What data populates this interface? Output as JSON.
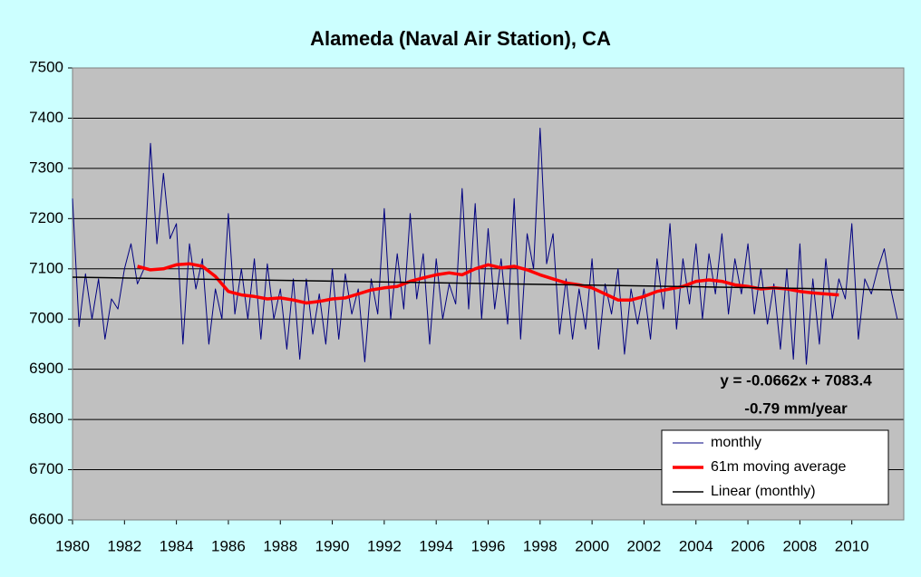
{
  "chart_data": {
    "type": "line",
    "title": "Alameda (Naval Air Station), CA",
    "annotations": [
      "y = -0.0662x + 7083.4",
      "-0.79 mm/year"
    ],
    "xlim": [
      1980,
      2012
    ],
    "xticks": [
      1980,
      1982,
      1984,
      1986,
      1988,
      1990,
      1992,
      1994,
      1996,
      1998,
      2000,
      2002,
      2004,
      2006,
      2008,
      2010
    ],
    "ylim": [
      6600,
      7500
    ],
    "yticks": [
      6600,
      6700,
      6800,
      6900,
      7000,
      7100,
      7200,
      7300,
      7400,
      7500
    ],
    "grid": true,
    "legend": "bottom-right",
    "series": [
      {
        "name": "monthly",
        "color": "#000080",
        "x": [
          1980,
          1980.25,
          1980.5,
          1980.75,
          1981,
          1981.25,
          1981.5,
          1981.75,
          1982,
          1982.25,
          1982.5,
          1982.75,
          1983,
          1983.25,
          1983.5,
          1983.75,
          1984,
          1984.25,
          1984.5,
          1984.75,
          1985,
          1985.25,
          1985.5,
          1985.75,
          1986,
          1986.25,
          1986.5,
          1986.75,
          1987,
          1987.25,
          1987.5,
          1987.75,
          1988,
          1988.25,
          1988.5,
          1988.75,
          1989,
          1989.25,
          1989.5,
          1989.75,
          1990,
          1990.25,
          1990.5,
          1990.75,
          1991,
          1991.25,
          1991.5,
          1991.75,
          1992,
          1992.25,
          1992.5,
          1992.75,
          1993,
          1993.25,
          1993.5,
          1993.75,
          1994,
          1994.25,
          1994.5,
          1994.75,
          1995,
          1995.25,
          1995.5,
          1995.75,
          1996,
          1996.25,
          1996.5,
          1996.75,
          1997,
          1997.25,
          1997.5,
          1997.75,
          1998,
          1998.25,
          1998.5,
          1998.75,
          1999,
          1999.25,
          1999.5,
          1999.75,
          2000,
          2000.25,
          2000.5,
          2000.75,
          2001,
          2001.25,
          2001.5,
          2001.75,
          2002,
          2002.25,
          2002.5,
          2002.75,
          2003,
          2003.25,
          2003.5,
          2003.75,
          2004,
          2004.25,
          2004.5,
          2004.75,
          2005,
          2005.25,
          2005.5,
          2005.75,
          2006,
          2006.25,
          2006.5,
          2006.75,
          2007,
          2007.25,
          2007.5,
          2007.75,
          2008,
          2008.25,
          2008.5,
          2008.75,
          2009,
          2009.25,
          2009.5,
          2009.75,
          2010,
          2010.25,
          2010.5,
          2010.75,
          2011,
          2011.25,
          2011.5,
          2011.75
        ],
        "values": [
          7240,
          6985,
          7090,
          7000,
          7080,
          6960,
          7040,
          7020,
          7100,
          7150,
          7070,
          7100,
          7350,
          7150,
          7290,
          7160,
          7190,
          6950,
          7150,
          7060,
          7120,
          6950,
          7060,
          7000,
          7210,
          7010,
          7100,
          7000,
          7120,
          6960,
          7110,
          7000,
          7060,
          6940,
          7080,
          6920,
          7080,
          6970,
          7050,
          6950,
          7100,
          6960,
          7090,
          7010,
          7060,
          6915,
          7080,
          7010,
          7220,
          7000,
          7130,
          7020,
          7210,
          7040,
          7130,
          6950,
          7120,
          7000,
          7070,
          7030,
          7260,
          7020,
          7230,
          7000,
          7180,
          7020,
          7120,
          6990,
          7240,
          6960,
          7170,
          7100,
          7380,
          7110,
          7170,
          6970,
          7080,
          6960,
          7060,
          6980,
          7120,
          6940,
          7070,
          7010,
          7100,
          6930,
          7060,
          6990,
          7060,
          6960,
          7120,
          7020,
          7190,
          6980,
          7120,
          7030,
          7150,
          7000,
          7130,
          7050,
          7170,
          7010,
          7120,
          7050,
          7150,
          7010,
          7100,
          6990,
          7070,
          6940,
          7100,
          6920,
          7150,
          6910,
          7080,
          6950,
          7120,
          7000,
          7080,
          7040,
          7190,
          6960,
          7080,
          7050,
          7100,
          7140,
          7060,
          7000
        ]
      },
      {
        "name": "61m moving average",
        "color": "#ff0000",
        "x": [
          1982.5,
          1983,
          1983.5,
          1984,
          1984.5,
          1985,
          1985.5,
          1986,
          1986.5,
          1987,
          1987.5,
          1988,
          1988.5,
          1989,
          1989.5,
          1990,
          1990.5,
          1991,
          1991.5,
          1992,
          1992.5,
          1993,
          1993.5,
          1994,
          1994.5,
          1995,
          1995.5,
          1996,
          1996.5,
          1997,
          1997.5,
          1998,
          1998.5,
          1999,
          1999.5,
          2000,
          2000.5,
          2001,
          2001.5,
          2002,
          2002.5,
          2003,
          2003.5,
          2004,
          2004.5,
          2005,
          2005.5,
          2006,
          2006.5,
          2007,
          2007.5,
          2008,
          2008.5,
          2009,
          2009.5
        ],
        "values": [
          7105,
          7098,
          7100,
          7108,
          7110,
          7105,
          7085,
          7055,
          7048,
          7045,
          7040,
          7042,
          7038,
          7032,
          7035,
          7040,
          7042,
          7050,
          7058,
          7062,
          7065,
          7075,
          7082,
          7088,
          7092,
          7088,
          7100,
          7108,
          7102,
          7105,
          7098,
          7088,
          7080,
          7072,
          7068,
          7062,
          7050,
          7038,
          7038,
          7045,
          7055,
          7060,
          7065,
          7075,
          7078,
          7075,
          7068,
          7065,
          7060,
          7062,
          7060,
          7055,
          7052,
          7050,
          7048
        ]
      },
      {
        "name": "Linear (monthly)",
        "color": "#000000",
        "x": [
          1980,
          2012
        ],
        "values": [
          7083.4,
          7058.0
        ]
      }
    ]
  }
}
